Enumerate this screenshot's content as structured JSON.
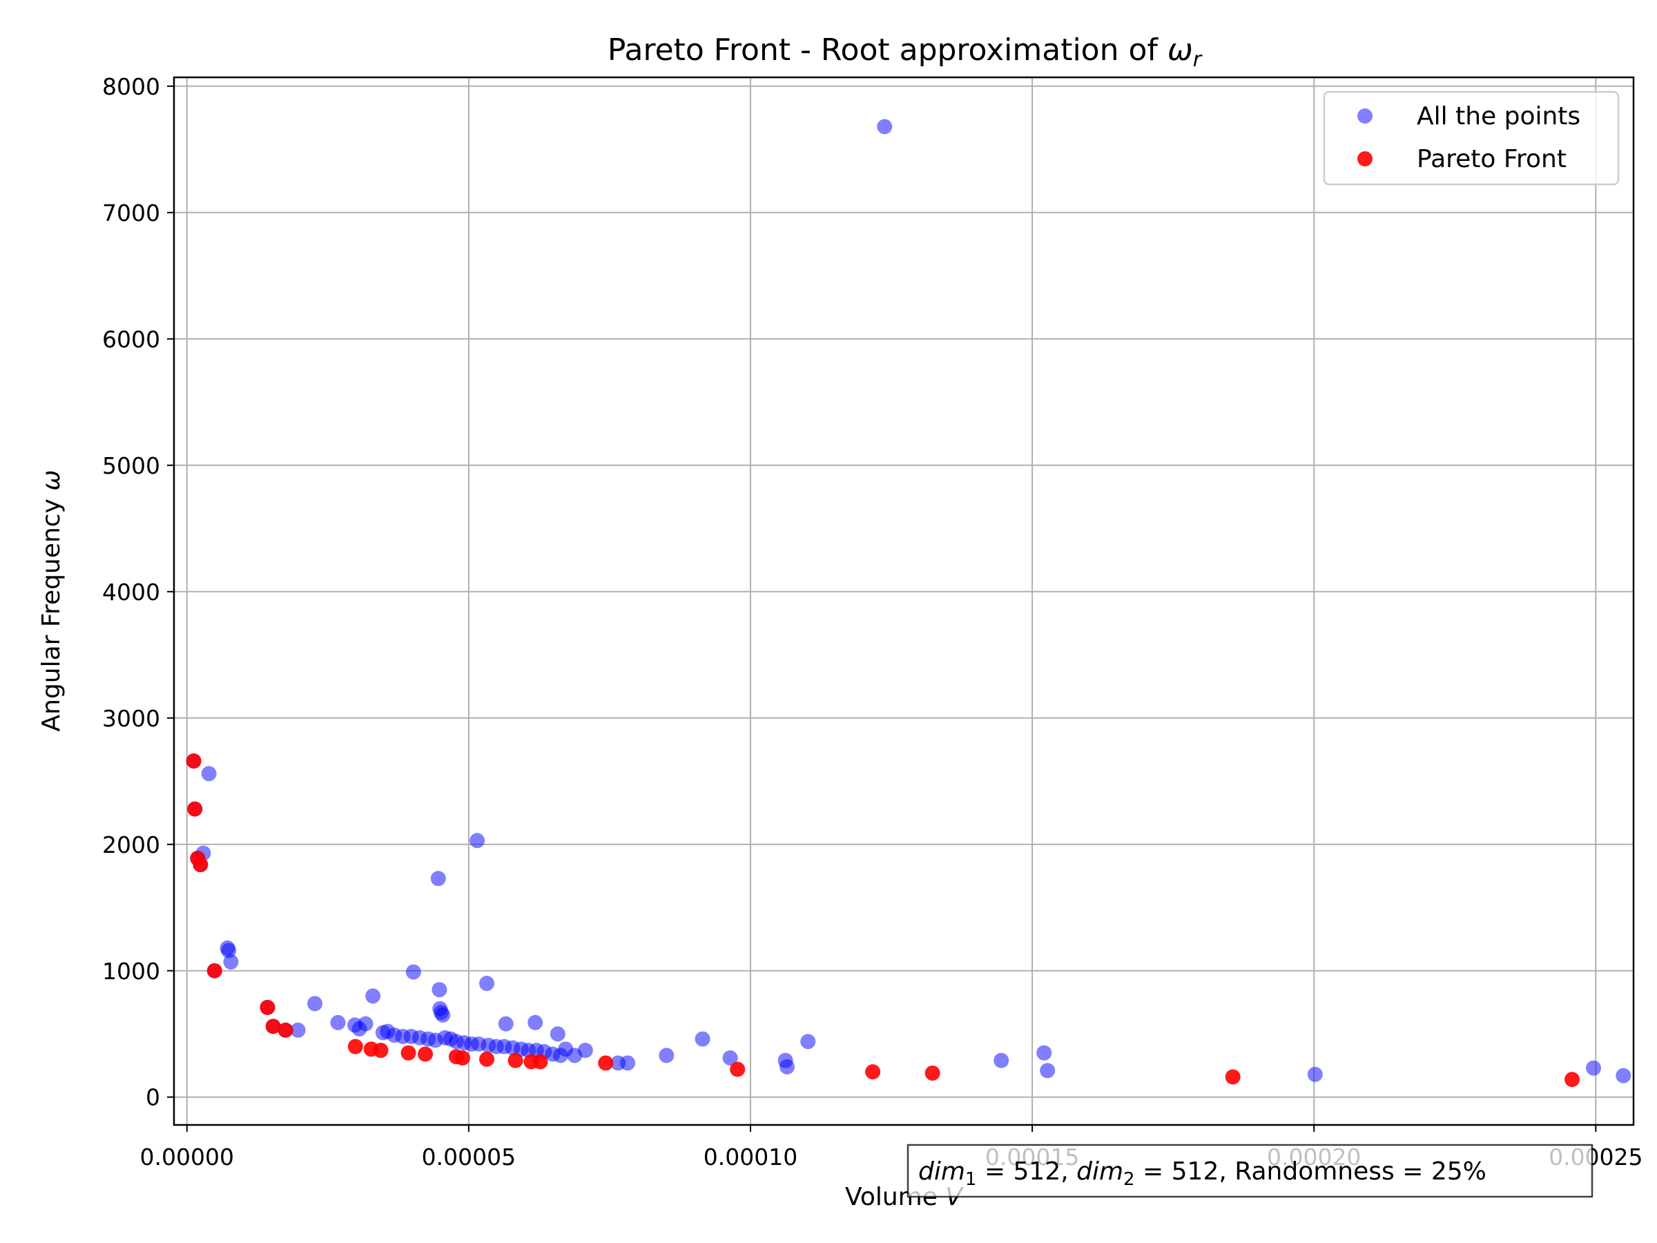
{
  "chart_data": {
    "type": "scatter",
    "title_main": "Pareto Front - Root approximation of ",
    "title_symbol": "ω",
    "title_subscript": "r",
    "xlabel_main": "Volume ",
    "xlabel_symbol": "V",
    "ylabel_main": "Angular Frequency ",
    "ylabel_symbol": "ω",
    "xlim": [
      -2.3e-06,
      0.0002567
    ],
    "ylim": [
      -220,
      8070
    ],
    "x_ticks": [
      0,
      5e-05,
      0.0001,
      0.00015,
      0.0002,
      0.00025
    ],
    "x_tick_labels": [
      "0.00000",
      "0.00005",
      "0.00010",
      "0.00015",
      "0.00020",
      "0.00025"
    ],
    "y_ticks": [
      0,
      1000,
      2000,
      3000,
      4000,
      5000,
      6000,
      7000,
      8000
    ],
    "y_tick_labels": [
      "0",
      "1000",
      "2000",
      "3000",
      "4000",
      "5000",
      "6000",
      "7000",
      "8000"
    ],
    "grid": true,
    "legend_position": "top-right",
    "annotation": {
      "dim1_label": "dim",
      "dim1_sub": "1",
      "dim1_value": " = 512, ",
      "dim2_label": "dim",
      "dim2_sub": "2",
      "dim2_value": " = 512, Randomness = 25%"
    },
    "series": [
      {
        "name": "All the points",
        "color": "#0000ff",
        "alpha": 0.5,
        "points": [
          [
            1.2e-06,
            2660
          ],
          [
            1.4e-06,
            2280
          ],
          [
            1.9e-06,
            1890
          ],
          [
            2.4e-06,
            1840
          ],
          [
            2.9e-06,
            1930
          ],
          [
            3.9e-06,
            2560
          ],
          [
            7.2e-06,
            1180
          ],
          [
            7.4e-06,
            1160
          ],
          [
            7.8e-06,
            1070
          ],
          [
            4.9e-06,
            1000
          ],
          [
            1.43e-05,
            710
          ],
          [
            1.53e-05,
            560
          ],
          [
            1.75e-05,
            530
          ],
          [
            1.97e-05,
            530
          ],
          [
            2.27e-05,
            740
          ],
          [
            2.68e-05,
            590
          ],
          [
            2.98e-05,
            570
          ],
          [
            3.06e-05,
            540
          ],
          [
            3.17e-05,
            580
          ],
          [
            3.3e-05,
            800
          ],
          [
            3.48e-05,
            510
          ],
          [
            3.56e-05,
            520
          ],
          [
            3.68e-05,
            490
          ],
          [
            3.83e-05,
            480
          ],
          [
            3.98e-05,
            480
          ],
          [
            4.02e-05,
            990
          ],
          [
            4.13e-05,
            470
          ],
          [
            4.28e-05,
            460
          ],
          [
            4.41e-05,
            450
          ],
          [
            4.46e-05,
            1730
          ],
          [
            4.48e-05,
            850
          ],
          [
            4.49e-05,
            700
          ],
          [
            4.51e-05,
            670
          ],
          [
            4.54e-05,
            650
          ],
          [
            4.58e-05,
            470
          ],
          [
            4.68e-05,
            460
          ],
          [
            4.78e-05,
            440
          ],
          [
            4.92e-05,
            430
          ],
          [
            5.05e-05,
            420
          ],
          [
            5.15e-05,
            2030
          ],
          [
            5.18e-05,
            420
          ],
          [
            5.32e-05,
            900
          ],
          [
            5.35e-05,
            410
          ],
          [
            5.49e-05,
            400
          ],
          [
            5.63e-05,
            400
          ],
          [
            5.66e-05,
            580
          ],
          [
            5.78e-05,
            390
          ],
          [
            5.93e-05,
            380
          ],
          [
            6.06e-05,
            370
          ],
          [
            6.18e-05,
            590
          ],
          [
            6.2e-05,
            370
          ],
          [
            6.34e-05,
            360
          ],
          [
            6.49e-05,
            340
          ],
          [
            6.58e-05,
            500
          ],
          [
            6.63e-05,
            330
          ],
          [
            6.72e-05,
            380
          ],
          [
            6.88e-05,
            330
          ],
          [
            7.07e-05,
            370
          ],
          [
            7.65e-05,
            270
          ],
          [
            7.82e-05,
            270
          ],
          [
            8.51e-05,
            330
          ],
          [
            9.15e-05,
            460
          ],
          [
            9.64e-05,
            310
          ],
          [
            0.0001062,
            290
          ],
          [
            0.0001065,
            240
          ],
          [
            0.0001102,
            440
          ],
          [
            0.0001238,
            7680
          ],
          [
            0.0001445,
            290
          ],
          [
            0.0001521,
            350
          ],
          [
            0.0001527,
            210
          ],
          [
            0.0002002,
            180
          ],
          [
            0.0002496,
            230
          ],
          [
            0.0002549,
            170
          ]
        ]
      },
      {
        "name": "Pareto Front",
        "color": "#ff0000",
        "alpha": 0.9,
        "points": [
          [
            1.2e-06,
            2660
          ],
          [
            1.4e-06,
            2280
          ],
          [
            1.9e-06,
            1890
          ],
          [
            2.4e-06,
            1840
          ],
          [
            4.9e-06,
            1000
          ],
          [
            1.43e-05,
            710
          ],
          [
            1.53e-05,
            560
          ],
          [
            1.75e-05,
            530
          ],
          [
            2.99e-05,
            400
          ],
          [
            3.27e-05,
            380
          ],
          [
            3.44e-05,
            370
          ],
          [
            3.93e-05,
            350
          ],
          [
            4.23e-05,
            340
          ],
          [
            4.78e-05,
            320
          ],
          [
            4.89e-05,
            310
          ],
          [
            5.32e-05,
            300
          ],
          [
            5.83e-05,
            290
          ],
          [
            6.11e-05,
            280
          ],
          [
            6.27e-05,
            280
          ],
          [
            7.43e-05,
            270
          ],
          [
            9.77e-05,
            220
          ],
          [
            0.0001217,
            200
          ],
          [
            0.0001323,
            190
          ],
          [
            0.0001856,
            160
          ],
          [
            0.0002458,
            140
          ]
        ]
      }
    ]
  }
}
